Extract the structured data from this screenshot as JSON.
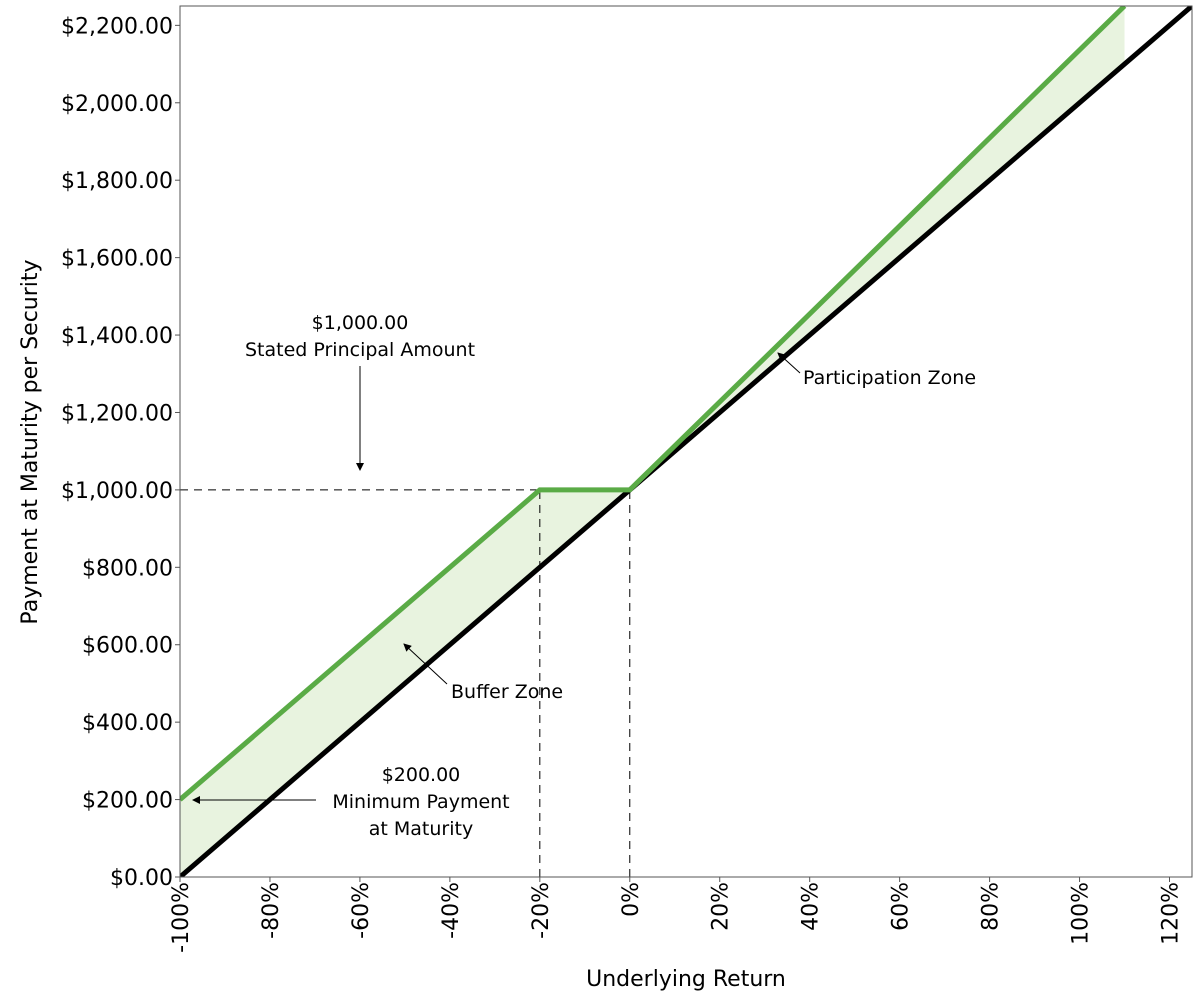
{
  "chart_data": {
    "type": "line",
    "title": "",
    "xlabel": "Underlying Return",
    "ylabel": "Payment at Maturity per Security",
    "xlim": [
      -100,
      125
    ],
    "ylim": [
      0,
      2250
    ],
    "x_ticks": [
      -100,
      -80,
      -60,
      -40,
      -20,
      0,
      20,
      40,
      60,
      80,
      100,
      120
    ],
    "x_tick_labels": [
      "-100%",
      "-80%",
      "-60%",
      "-40%",
      "-20%",
      "0%",
      "20%",
      "40%",
      "60%",
      "80%",
      "100%",
      "120%"
    ],
    "y_ticks": [
      0,
      200,
      400,
      600,
      800,
      1000,
      1200,
      1400,
      1600,
      1800,
      2000,
      2200
    ],
    "y_tick_labels": [
      "$0.00",
      "$200.00",
      "$400.00",
      "$600.00",
      "$800.00",
      "$1,000.00",
      "$1,200.00",
      "$1,400.00",
      "$1,600.00",
      "$1,800.00",
      "$2,000.00",
      "$2,200.00"
    ],
    "grid": false,
    "series": [
      {
        "color": "#5aab46",
        "points": [
          [
            -100,
            200
          ],
          [
            -20,
            1000
          ],
          [
            0,
            1000
          ],
          [
            110,
            2250
          ]
        ]
      },
      {
        "color": "#000000",
        "points": [
          [
            -100,
            0
          ],
          [
            125,
            2250
          ]
        ]
      }
    ],
    "shaded_region_color": "#e8f3df",
    "reference_lines": [
      {
        "points": [
          [
            -100,
            1000
          ],
          [
            0,
            1000
          ]
        ]
      },
      {
        "points": [
          [
            -20,
            0
          ],
          [
            -20,
            1000
          ]
        ]
      },
      {
        "points": [
          [
            0,
            0
          ],
          [
            0,
            1000
          ]
        ]
      }
    ],
    "annotations": [
      {
        "id": "stated-principal",
        "lines": [
          "$1,000.00",
          "Stated Principal Amount"
        ]
      },
      {
        "id": "participation",
        "lines": [
          "Participation Zone"
        ]
      },
      {
        "id": "buffer",
        "lines": [
          "Buffer Zone"
        ]
      },
      {
        "id": "minimum",
        "lines": [
          "$200.00",
          "Minimum Payment",
          "at Maturity"
        ]
      }
    ]
  }
}
